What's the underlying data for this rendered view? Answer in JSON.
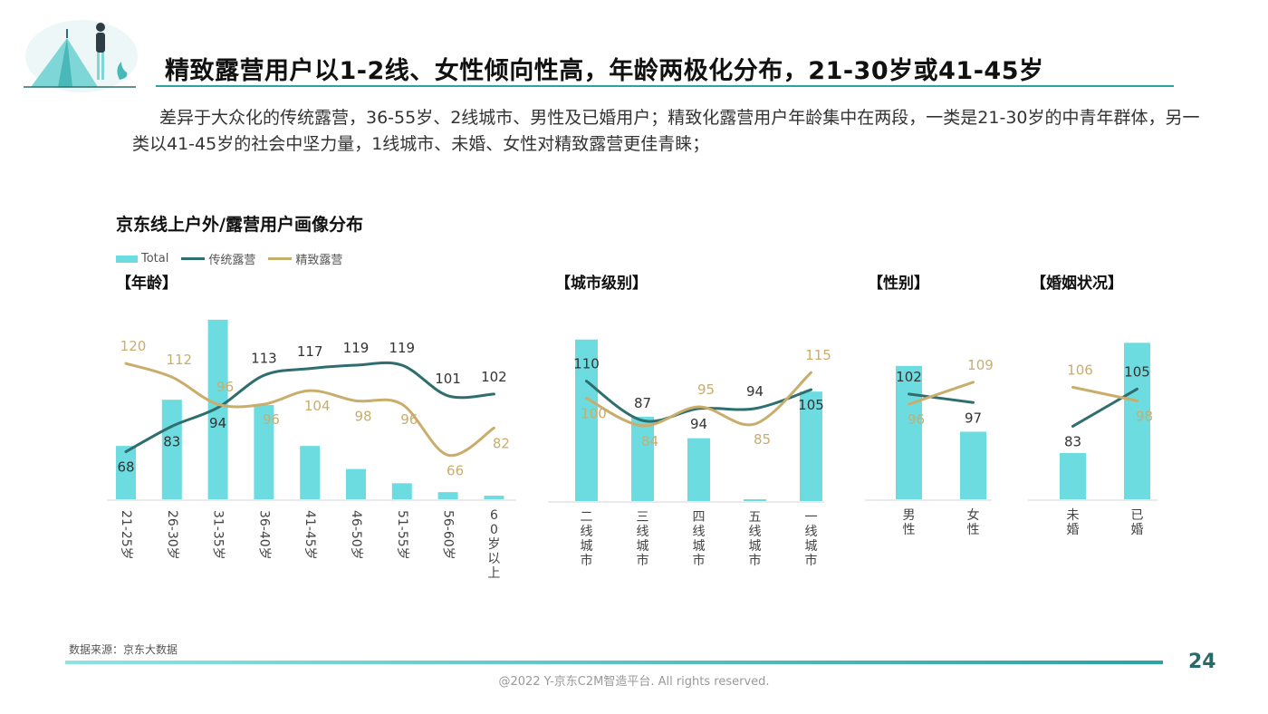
{
  "header": {
    "title": "精致露营用户以1-2线、女性倾向性高，年龄两极化分布，21-30岁或41-45岁",
    "intro": "差异于大众化的传统露营，36-55岁、2线城市、男性及已婚用户；精致化露营用户年龄集中在两段，一类是21-30岁的中青年群体，另一类以41-45岁的社会中坚力量，1线城市、未婚、女性对精致露营更佳青睐；"
  },
  "chart_title": "京东线上户外/露营用户画像分布",
  "legend": {
    "total": "Total",
    "traditional": "传统露营",
    "refined": "精致露营"
  },
  "colors": {
    "bar": "#6ddce0",
    "traditional": "#2e6e6e",
    "refined": "#c9ad6b",
    "title_rule": "#2aa3a3"
  },
  "chart_data": [
    {
      "type": "bar+line",
      "title": "【年龄】",
      "categories": [
        "21-25岁",
        "26-30岁",
        "31-35岁",
        "36-40岁",
        "41-45岁",
        "46-50岁",
        "51-55岁",
        "56-60岁",
        "60岁以上"
      ],
      "series": [
        {
          "name": "Total",
          "type": "bar",
          "values": [
            30,
            56,
            101,
            53,
            30,
            17,
            9,
            4,
            2
          ]
        },
        {
          "name": "传统露营",
          "type": "line",
          "values": [
            68,
            83,
            94,
            113,
            117,
            119,
            119,
            101,
            102
          ]
        },
        {
          "name": "精致露营",
          "type": "line",
          "values": [
            120,
            112,
            96,
            96,
            104,
            98,
            96,
            66,
            82
          ]
        }
      ],
      "ylim_bar": [
        0,
        105
      ],
      "ylim_line": [
        40,
        150
      ]
    },
    {
      "type": "bar+line",
      "title": "【城市级别】",
      "categories": [
        "二线城市",
        "三线城市",
        "四线城市",
        "五线城市",
        "一线城市"
      ],
      "series": [
        {
          "name": "Total",
          "type": "bar",
          "values": [
            90,
            47,
            35,
            1,
            61
          ]
        },
        {
          "name": "传统露营",
          "type": "line",
          "values": [
            110,
            87,
            94,
            94,
            105
          ]
        },
        {
          "name": "精致露营",
          "type": "line",
          "values": [
            100,
            84,
            95,
            85,
            115
          ]
        }
      ],
      "ylim_bar": [
        0,
        105
      ],
      "ylim_line": [
        40,
        150
      ]
    },
    {
      "type": "bar+line",
      "title": "【性别】",
      "categories": [
        "男性",
        "女性"
      ],
      "series": [
        {
          "name": "Total",
          "type": "bar",
          "values": [
            75,
            38
          ]
        },
        {
          "name": "传统露营",
          "type": "line",
          "values": [
            102,
            97
          ]
        },
        {
          "name": "精致露营",
          "type": "line",
          "values": [
            96,
            109
          ]
        }
      ],
      "ylim_bar": [
        0,
        105
      ],
      "ylim_line": [
        40,
        150
      ]
    },
    {
      "type": "bar+line",
      "title": "【婚姻状况】",
      "categories": [
        "未婚",
        "已婚"
      ],
      "series": [
        {
          "name": "Total",
          "type": "bar",
          "values": [
            26,
            88
          ]
        },
        {
          "name": "传统露营",
          "type": "line",
          "values": [
            83,
            105
          ]
        },
        {
          "name": "精致露营",
          "type": "line",
          "values": [
            106,
            98
          ]
        }
      ],
      "ylim_bar": [
        0,
        105
      ],
      "ylim_line": [
        40,
        150
      ]
    }
  ],
  "footer": {
    "source": "数据来源：京东大数据",
    "page_number": "24",
    "copyright": "@2022 Y-京东C2M智造平台. All rights reserved."
  }
}
